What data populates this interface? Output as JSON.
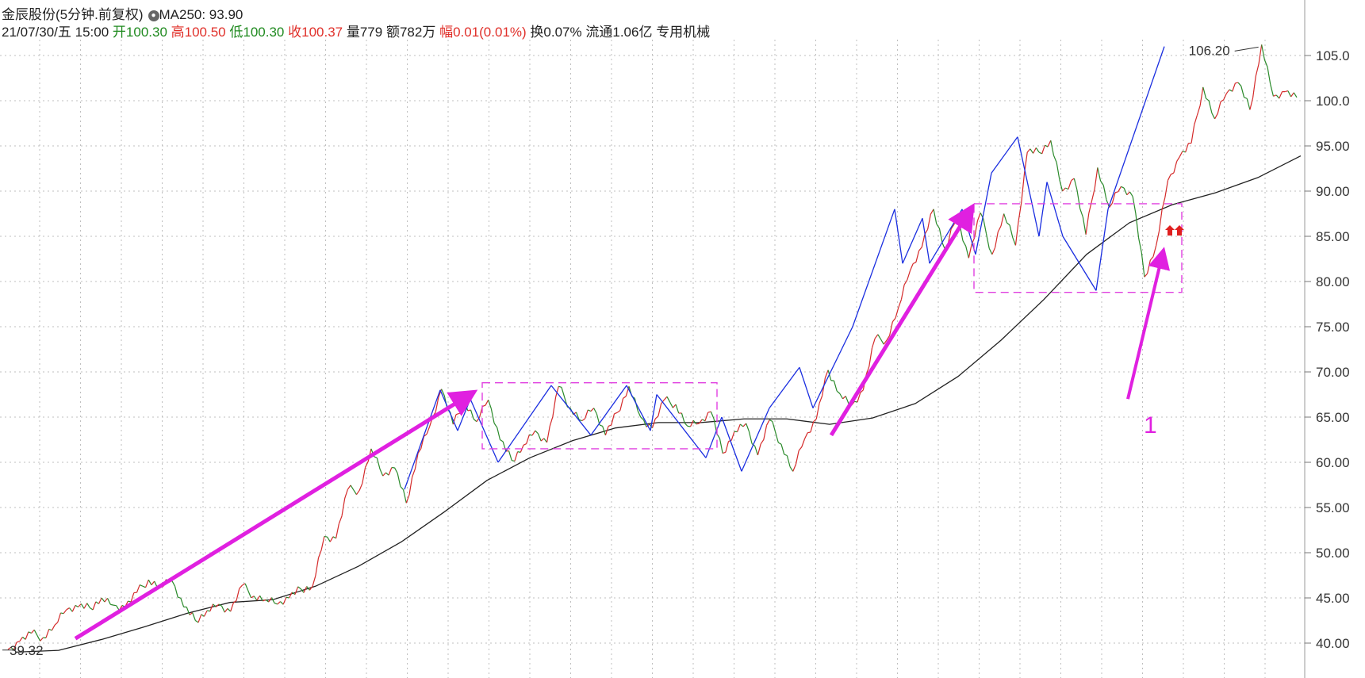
{
  "header": {
    "title": "金辰股份(5分钟.前复权)",
    "ma_label": "MA250: 93.90",
    "datetime": "21/07/30/五 15:00",
    "open_label": "开",
    "open_value": "100.30",
    "high_label": "高",
    "high_value": "100.50",
    "low_label": "低",
    "low_value": "100.30",
    "close_label": "收",
    "close_value": "100.37",
    "volume_label": "量",
    "volume_value": "779",
    "amount_label": "额",
    "amount_value": "782万",
    "change_label": "幅",
    "change_value": "0.01(0.01%)",
    "turnover": "换0.07%",
    "float_cap": "流通1.06亿",
    "sector": "专用机械"
  },
  "chart_data": {
    "type": "line",
    "title": "金辰股份(5分钟.前复权)",
    "y_ticks": [
      "105.0",
      "100.0",
      "95.00",
      "90.00",
      "85.00",
      "80.00",
      "75.00",
      "70.00",
      "65.00",
      "60.00",
      "55.00",
      "50.00",
      "45.00",
      "40.00"
    ],
    "ylim": [
      37.5,
      108
    ],
    "grid": true,
    "annotations": {
      "high_label": "106.20",
      "low_label": "39.32",
      "marker_number": "1"
    },
    "series": [
      {
        "kind": "price",
        "values": [
          39.3,
          40.2,
          41.1,
          40.6,
          42.0,
          43.7,
          44.0,
          43.9,
          45.0,
          44.2,
          44.0,
          45.6,
          47.0,
          46.2,
          46.9,
          44.0,
          42.5,
          43.6,
          44.3,
          43.5,
          46.4,
          45.2,
          44.8,
          44.3,
          45.0,
          46.0,
          46.3,
          51.8,
          51.6,
          57.0,
          56.9,
          61.5,
          58.5,
          59.4,
          55.5,
          61.0,
          64.0,
          68.1,
          64.2,
          66.6,
          64.5,
          66.9,
          62.5,
          60.2,
          61.9,
          63.5,
          62.2,
          68.4,
          66.0,
          64.6,
          66.0,
          63.0,
          65.5,
          68.4,
          65.0,
          63.8,
          66.9,
          66.4,
          64.0,
          64.3,
          65.6,
          61.0,
          63.4,
          64.3,
          60.8,
          64.7,
          62.0,
          59.0,
          62.6,
          64.8,
          70.2,
          67.6,
          66.3,
          68.0,
          73.7,
          73.5,
          77.1,
          81.2,
          83.8,
          88.0,
          83.5,
          87.4,
          82.6,
          87.6,
          83.0,
          87.5,
          84.0,
          94.3,
          94.3,
          95.6,
          90.0,
          91.4,
          85.2,
          92.6,
          88.2,
          90.5,
          89.4,
          80.5,
          84.0,
          91.2,
          93.8,
          95.3,
          101.5,
          98.0,
          100.8,
          102.0,
          99.0,
          106.2,
          100.5,
          101.0,
          100.37
        ]
      },
      {
        "kind": "MA250",
        "name": "MA250",
        "values": [
          39.0,
          39.2,
          40.4,
          41.8,
          43.3,
          44.5,
          44.8,
          46.3,
          48.5,
          51.2,
          54.5,
          58.0,
          60.5,
          62.4,
          63.8,
          64.4,
          64.4,
          64.8,
          64.8,
          64.2,
          64.9,
          66.5,
          69.5,
          73.5,
          78.0,
          83.0,
          86.5,
          88.5,
          89.8,
          91.5,
          93.9
        ]
      }
    ]
  }
}
